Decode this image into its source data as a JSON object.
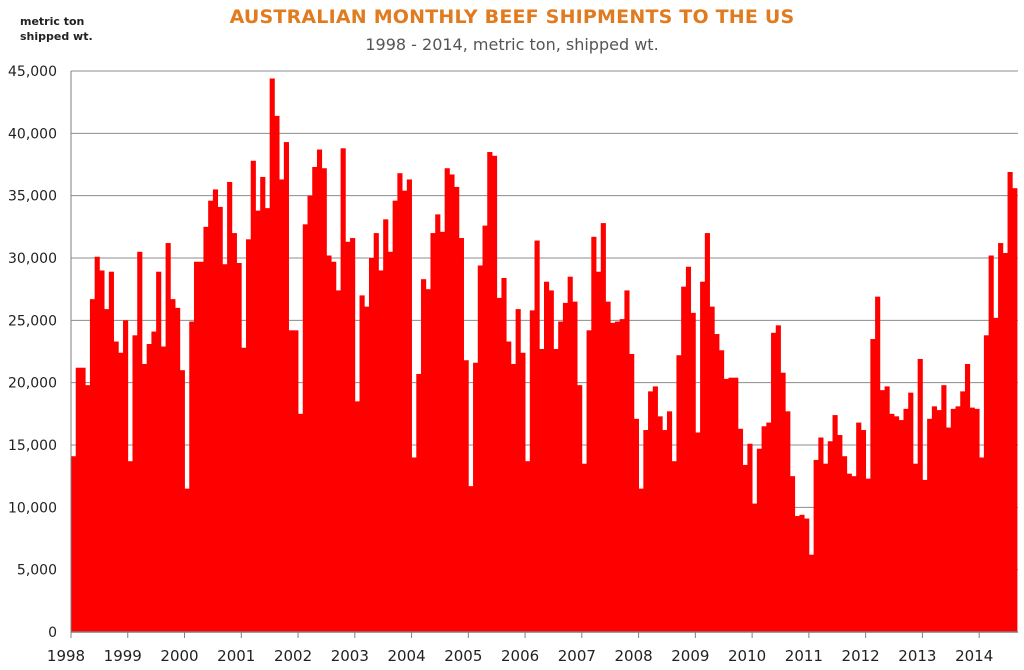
{
  "chart_data": {
    "type": "bar",
    "title": "AUSTRALIAN MONTHLY BEEF SHIPMENTS TO THE US",
    "subtitle": "1998 - 2014, metric ton, shipped wt.",
    "ylabel": "metric ton\nshipped wt.",
    "ylim": [
      0,
      45000
    ],
    "y_ticks": [
      "0",
      "5,000",
      "10,000",
      "15,000",
      "20,000",
      "25,000",
      "30,000",
      "35,000",
      "40,000",
      "45,000"
    ],
    "x_ticks": [
      "1998",
      "1999",
      "2000",
      "2001",
      "2002",
      "2003",
      "2004",
      "2005",
      "2006",
      "2007",
      "2008",
      "2009",
      "2010",
      "2011",
      "2012",
      "2013",
      "2014"
    ],
    "grid": "horizontal",
    "bar_color": "#FF0000",
    "series": [
      {
        "values": [
          14100,
          21200,
          21200,
          19800,
          26700,
          30100,
          29000,
          25900,
          28900,
          23300,
          22400,
          25000,
          13700,
          23800,
          30500,
          21500,
          23100,
          24100,
          28900,
          22900,
          31200,
          26700,
          26000,
          21000,
          11500,
          24900,
          29700,
          29700,
          32500,
          34600,
          35500,
          34100,
          29500,
          36100,
          32000,
          29600,
          22800,
          31500,
          37800,
          33800,
          36500,
          34000,
          44400,
          41400,
          36300,
          39300,
          24200,
          24200,
          17500,
          32700,
          35000,
          37300,
          38700,
          37200,
          30200,
          29700,
          27400,
          38800,
          31300,
          31600,
          18500,
          27000,
          26100,
          30000,
          32000,
          29000,
          33100,
          30500,
          34600,
          36800,
          35400,
          36300,
          14000,
          20700,
          28300,
          27500,
          32000,
          33500,
          32100,
          37200,
          36700,
          35700,
          31600,
          21800,
          11700,
          21600,
          29400,
          32600,
          38500,
          38200,
          26800,
          28400,
          23300,
          21500,
          25900,
          22400,
          13700,
          25800,
          31400,
          22700,
          28100,
          27400,
          22700,
          24900,
          26400,
          28500,
          26500,
          19800,
          13500,
          24200,
          31700,
          28900,
          32800,
          26500,
          24800,
          24900,
          25100,
          27400,
          22300,
          17100,
          11500,
          16200,
          19300,
          19700,
          17300,
          16200,
          17700,
          13700,
          22200,
          27700,
          29300,
          25600,
          16000,
          28100,
          32000,
          26100,
          23900,
          22600,
          20300,
          20400,
          20400,
          16300,
          13400,
          15100,
          10300,
          14700,
          16500,
          16800,
          24000,
          24600,
          20800,
          17700,
          12500,
          9300,
          9400,
          9100,
          6200,
          13800,
          15600,
          13500,
          15300,
          17400,
          15800,
          14100,
          12700,
          12500,
          16800,
          16200,
          12300,
          23500,
          26900,
          19400,
          19700,
          17500,
          17300,
          17000,
          17900,
          19200,
          13500,
          21900,
          12200,
          17100,
          18100,
          17800,
          19800,
          16400,
          17900,
          18100,
          19300,
          21500,
          18000,
          17900,
          14000,
          23800,
          30200,
          25200,
          31200,
          30400,
          36900,
          35600
        ]
      }
    ]
  }
}
